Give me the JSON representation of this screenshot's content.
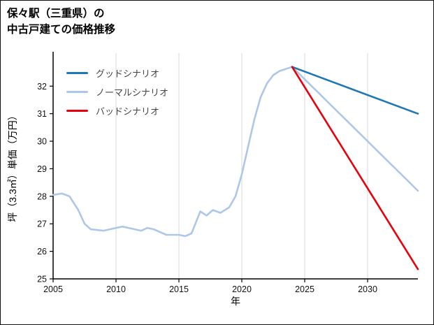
{
  "page": {
    "title_line1": "保々駅（三重県）の",
    "title_line2": "中古戸建ての価格推移"
  },
  "chart_data": {
    "type": "line",
    "title": "保々駅（三重県）の中古戸建ての価格推移",
    "xlabel": "年",
    "ylabel": "坪（3.3㎡）単価（万円）",
    "xlim": [
      2005,
      2034
    ],
    "ylim": [
      25,
      33.2
    ],
    "xticks": [
      2005,
      2010,
      2015,
      2020,
      2025,
      2030
    ],
    "yticks": [
      25,
      26,
      27,
      28,
      29,
      30,
      31,
      32
    ],
    "grid": "vertical-only",
    "grid_color": "#d8d8d8",
    "legend_position": "upper-left",
    "series": [
      {
        "name": "グッドシナリオ",
        "color": "#1f77b4",
        "x": [
          2024,
          2034
        ],
        "y": [
          32.7,
          31.0
        ]
      },
      {
        "name": "ノーマルシナリオ",
        "color": "#aec7e8",
        "x": [
          2005,
          2005.7,
          2006.3,
          2007,
          2007.5,
          2008,
          2009,
          2010,
          2010.5,
          2011,
          2012,
          2012.5,
          2013,
          2014,
          2015,
          2015.5,
          2016,
          2016.7,
          2017.2,
          2017.7,
          2018.3,
          2019,
          2019.5,
          2020,
          2020.5,
          2021,
          2021.5,
          2022,
          2022.5,
          2023,
          2024,
          2025,
          2026,
          2027,
          2028,
          2029,
          2030,
          2031,
          2032,
          2033,
          2034
        ],
        "y": [
          28.05,
          28.1,
          28.0,
          27.5,
          27.0,
          26.8,
          26.75,
          26.85,
          26.9,
          26.85,
          26.75,
          26.85,
          26.8,
          26.6,
          26.6,
          26.55,
          26.65,
          27.45,
          27.3,
          27.5,
          27.4,
          27.6,
          28.0,
          28.8,
          29.8,
          30.8,
          31.6,
          32.1,
          32.4,
          32.55,
          32.7,
          32.25,
          31.8,
          31.35,
          30.9,
          30.45,
          30.0,
          29.55,
          29.1,
          28.65,
          28.2
        ]
      },
      {
        "name": "バッドシナリオ",
        "color": "#e8000b",
        "x": [
          2024,
          2034
        ],
        "y": [
          32.7,
          25.35
        ]
      }
    ]
  }
}
